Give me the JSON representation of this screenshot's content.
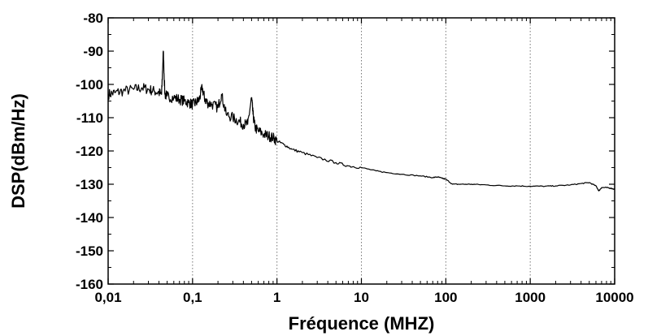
{
  "chart_data": {
    "type": "line",
    "xlabel": "Fréquence (MHZ)",
    "ylabel": "DSP(dBm/Hz)",
    "x_scale": "log",
    "xlim": [
      0.01,
      10000
    ],
    "ylim": [
      -160,
      -80
    ],
    "x_ticks": [
      "0,01",
      "0,1",
      "1",
      "10",
      "100",
      "1000",
      "10000"
    ],
    "y_ticks": [
      "-80",
      "-90",
      "-100",
      "-110",
      "-120",
      "-130",
      "-140",
      "-150",
      "-160"
    ],
    "vertical_grid_at": [
      0.1,
      1,
      10,
      100,
      1000
    ],
    "grid": "vertical dotted",
    "series": [
      {
        "color": "#000000",
        "x": [
          0.01,
          0.012,
          0.015,
          0.02,
          0.025,
          0.03,
          0.035,
          0.04,
          0.043,
          0.045,
          0.047,
          0.05,
          0.06,
          0.07,
          0.08,
          0.09,
          0.1,
          0.11,
          0.12,
          0.13,
          0.14,
          0.15,
          0.17,
          0.2,
          0.22,
          0.25,
          0.3,
          0.35,
          0.4,
          0.45,
          0.5,
          0.52,
          0.55,
          0.6,
          0.7,
          0.8,
          0.9,
          1,
          1.2,
          1.5,
          2,
          3,
          5,
          7,
          10,
          15,
          20,
          30,
          50,
          70,
          80,
          90,
          100,
          120,
          150,
          200,
          300,
          500,
          700,
          1000,
          1500,
          2000,
          3000,
          4000,
          5000,
          6000,
          6500,
          7000,
          8000,
          9000,
          10000
        ],
        "y": [
          -103,
          -102.5,
          -102,
          -101.5,
          -101,
          -101.5,
          -102,
          -102.5,
          -103,
          -90,
          -103,
          -103.5,
          -104,
          -104.5,
          -105,
          -105.5,
          -106,
          -105.5,
          -104.5,
          -101,
          -104.5,
          -105.5,
          -106,
          -107,
          -103,
          -109,
          -110,
          -111,
          -112,
          -112,
          -104,
          -109,
          -113,
          -114,
          -115,
          -115.5,
          -116,
          -117,
          -118,
          -119.5,
          -120.5,
          -122,
          -123.5,
          -124.5,
          -125,
          -126,
          -126.5,
          -127,
          -127.5,
          -128,
          -127.8,
          -128.2,
          -128.5,
          -130,
          -130,
          -130,
          -130.2,
          -130.5,
          -130.5,
          -130.6,
          -130.6,
          -130.5,
          -130.2,
          -129.8,
          -129.5,
          -130.5,
          -132,
          -131,
          -131,
          -131.2,
          -131.5
        ]
      }
    ]
  }
}
